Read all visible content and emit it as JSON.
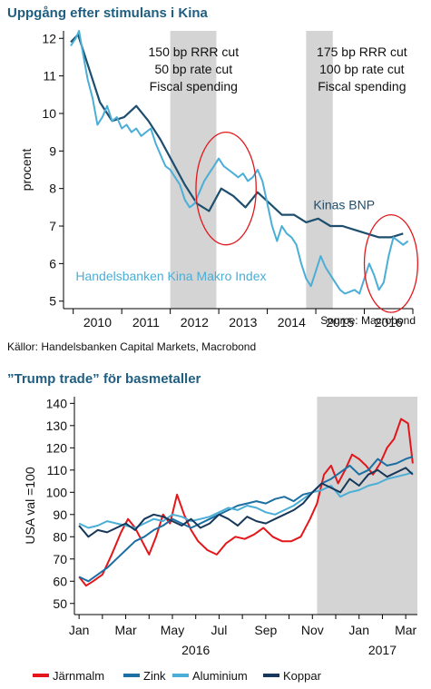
{
  "chart_data": [
    {
      "type": "line",
      "title": "Uppgång efter stimulans i Kina",
      "ylabel": "procent",
      "source": "Source: Macrobond",
      "ylim": [
        4.8,
        12.2
      ],
      "yticks": [
        5,
        6,
        7,
        8,
        9,
        10,
        11,
        12
      ],
      "xlim": [
        2009.8,
        2017.0
      ],
      "xticks": [
        "2010",
        "2011",
        "2012",
        "2013",
        "2014",
        "2015",
        "2016"
      ],
      "shaded_periods": [
        [
          2012.0,
          2012.95
        ],
        [
          2014.8,
          2015.35
        ]
      ],
      "annotations": [
        {
          "lines": [
            "150 bp RRR cut",
            "50 bp rate cut",
            "Fiscal spending"
          ]
        },
        {
          "lines": [
            "175 bp RRR cut",
            "100 bp rate cut",
            "Fiscal spending"
          ]
        }
      ],
      "circles": [
        {
          "cx": 2013.15,
          "cy": 8.0,
          "rx": 0.62,
          "ry": 1.5
        },
        {
          "cx": 2016.55,
          "cy": 6.0,
          "rx": 0.55,
          "ry": 1.3
        }
      ],
      "series": [
        {
          "name": "Kinas BNP",
          "color": "#1d4e6e",
          "x": [
            2009.95,
            2010.1,
            2010.3,
            2010.55,
            2010.8,
            2011.05,
            2011.3,
            2011.55,
            2011.8,
            2012.05,
            2012.3,
            2012.55,
            2012.8,
            2013.05,
            2013.3,
            2013.55,
            2013.8,
            2014.05,
            2014.3,
            2014.55,
            2014.8,
            2015.05,
            2015.3,
            2015.55,
            2015.8,
            2016.05,
            2016.3,
            2016.55,
            2016.8
          ],
          "values": [
            11.9,
            12.1,
            11.3,
            10.3,
            9.8,
            9.9,
            10.2,
            9.8,
            9.3,
            8.7,
            8.1,
            7.6,
            7.4,
            8.0,
            7.8,
            7.5,
            7.9,
            7.6,
            7.3,
            7.3,
            7.1,
            7.2,
            7.0,
            7.0,
            6.9,
            6.8,
            6.7,
            6.7,
            6.8
          ]
        },
        {
          "name": "Handelsbanken Kina Makro Index",
          "color": "#4baed6",
          "x": [
            2009.95,
            2010.05,
            2010.12,
            2010.2,
            2010.3,
            2010.4,
            2010.5,
            2010.6,
            2010.7,
            2010.8,
            2010.9,
            2011.0,
            2011.1,
            2011.2,
            2011.3,
            2011.4,
            2011.5,
            2011.6,
            2011.7,
            2011.8,
            2011.9,
            2012.0,
            2012.1,
            2012.2,
            2012.3,
            2012.4,
            2012.5,
            2012.6,
            2012.7,
            2012.8,
            2012.9,
            2013.0,
            2013.1,
            2013.2,
            2013.3,
            2013.4,
            2013.5,
            2013.6,
            2013.7,
            2013.8,
            2013.9,
            2014.0,
            2014.1,
            2014.2,
            2014.3,
            2014.4,
            2014.5,
            2014.6,
            2014.7,
            2014.8,
            2014.9,
            2015.0,
            2015.1,
            2015.2,
            2015.3,
            2015.4,
            2015.5,
            2015.6,
            2015.7,
            2015.8,
            2015.9,
            2016.0,
            2016.1,
            2016.2,
            2016.3,
            2016.4,
            2016.5,
            2016.6,
            2016.7,
            2016.8,
            2016.9
          ],
          "values": [
            11.8,
            12.0,
            12.2,
            11.6,
            10.9,
            10.4,
            9.7,
            9.9,
            10.2,
            9.8,
            9.9,
            9.6,
            9.7,
            9.5,
            9.6,
            9.4,
            9.5,
            9.6,
            9.2,
            8.9,
            8.6,
            8.5,
            8.3,
            8.1,
            7.7,
            7.5,
            7.6,
            7.9,
            8.2,
            8.4,
            8.6,
            8.8,
            8.6,
            8.5,
            8.4,
            8.3,
            8.4,
            8.2,
            8.3,
            8.5,
            8.2,
            7.6,
            7.0,
            6.6,
            7.0,
            6.8,
            6.7,
            6.5,
            6.0,
            5.6,
            5.4,
            5.8,
            6.2,
            5.9,
            5.7,
            5.5,
            5.3,
            5.2,
            5.25,
            5.3,
            5.2,
            5.6,
            6.0,
            5.7,
            5.3,
            5.5,
            6.2,
            6.7,
            6.6,
            6.5,
            6.6
          ]
        }
      ],
      "labels": {
        "gdp": "Kinas BNP",
        "index": "Handelsbanken Kina Makro Index"
      }
    },
    {
      "type": "line",
      "title": "”Trump trade” för basmetaller",
      "ylabel": "USA val =100",
      "ylim": [
        45,
        143
      ],
      "yticks": [
        50,
        60,
        70,
        80,
        90,
        100,
        110,
        120,
        130,
        140
      ],
      "xticks": [
        "Jan",
        "Mar",
        "May",
        "Jul",
        "Sep",
        "Nov",
        "Jan",
        "Mar"
      ],
      "year_labels": [
        "2016",
        "2017"
      ],
      "x_unit": "months since Jan 2016",
      "xlim": [
        -0.2,
        14.5
      ],
      "shaded_periods": [
        [
          10.2,
          14.5
        ]
      ],
      "series": [
        {
          "name": "Järnmalm",
          "color": "#e3171b",
          "x": [
            0,
            0.3,
            0.6,
            1.0,
            1.4,
            1.8,
            2.1,
            2.4,
            2.7,
            3.0,
            3.3,
            3.6,
            3.9,
            4.2,
            4.5,
            4.8,
            5.1,
            5.5,
            5.9,
            6.3,
            6.7,
            7.1,
            7.5,
            7.9,
            8.3,
            8.7,
            9.1,
            9.5,
            9.9,
            10.2,
            10.5,
            10.8,
            11.1,
            11.4,
            11.7,
            12.0,
            12.3,
            12.6,
            12.9,
            13.2,
            13.5,
            13.8,
            14.1,
            14.3
          ],
          "values": [
            62,
            58,
            60,
            63,
            72,
            82,
            88,
            84,
            78,
            72,
            80,
            90,
            86,
            99,
            90,
            83,
            78,
            74,
            72,
            77,
            80,
            79,
            81,
            84,
            80,
            78,
            78,
            80,
            88,
            95,
            108,
            112,
            104,
            110,
            117,
            115,
            112,
            108,
            113,
            120,
            124,
            133,
            131,
            113
          ]
        },
        {
          "name": "Zink",
          "color": "#1b6fa3",
          "x": [
            0,
            0.4,
            0.8,
            1.2,
            1.6,
            2.0,
            2.4,
            2.8,
            3.2,
            3.6,
            4.0,
            4.4,
            4.8,
            5.2,
            5.6,
            6.0,
            6.4,
            6.8,
            7.2,
            7.6,
            8.0,
            8.4,
            8.8,
            9.2,
            9.6,
            10.0,
            10.4,
            10.8,
            11.2,
            11.6,
            12.0,
            12.4,
            12.8,
            13.2,
            13.6,
            14.0,
            14.3
          ],
          "values": [
            62,
            60,
            63,
            66,
            70,
            74,
            78,
            80,
            83,
            85,
            88,
            86,
            84,
            86,
            88,
            90,
            92,
            94,
            95,
            96,
            95,
            97,
            98,
            96,
            99,
            100,
            104,
            106,
            109,
            112,
            108,
            110,
            115,
            112,
            113,
            115,
            116
          ]
        },
        {
          "name": "Aluminium",
          "color": "#4baed6",
          "x": [
            0,
            0.4,
            0.8,
            1.2,
            1.6,
            2.0,
            2.4,
            2.8,
            3.2,
            3.6,
            4.0,
            4.4,
            4.8,
            5.2,
            5.6,
            6.0,
            6.4,
            6.8,
            7.2,
            7.6,
            8.0,
            8.4,
            8.8,
            9.2,
            9.6,
            10.0,
            10.4,
            10.8,
            11.2,
            11.6,
            12.0,
            12.4,
            12.8,
            13.2,
            13.6,
            14.0,
            14.3
          ],
          "values": [
            86,
            84,
            85,
            87,
            86,
            85,
            84,
            86,
            88,
            87,
            90,
            89,
            87,
            88,
            89,
            91,
            93,
            92,
            94,
            93,
            91,
            90,
            92,
            94,
            97,
            100,
            101,
            103,
            98,
            100,
            101,
            103,
            104,
            106,
            107,
            108,
            109
          ]
        },
        {
          "name": "Koppar",
          "color": "#17385a",
          "x": [
            0,
            0.4,
            0.8,
            1.2,
            1.6,
            2.0,
            2.4,
            2.8,
            3.2,
            3.6,
            4.0,
            4.4,
            4.8,
            5.2,
            5.6,
            6.0,
            6.4,
            6.8,
            7.2,
            7.6,
            8.0,
            8.4,
            8.8,
            9.2,
            9.6,
            10.0,
            10.4,
            10.8,
            11.2,
            11.6,
            12.0,
            12.4,
            12.8,
            13.2,
            13.6,
            14.0,
            14.3
          ],
          "values": [
            85,
            80,
            83,
            82,
            84,
            86,
            83,
            88,
            90,
            89,
            87,
            85,
            88,
            84,
            86,
            90,
            88,
            85,
            89,
            87,
            86,
            88,
            90,
            92,
            95,
            100,
            104,
            102,
            100,
            106,
            103,
            108,
            110,
            107,
            109,
            111,
            108
          ]
        }
      ]
    }
  ],
  "footer": {
    "sources": "Källor: Handelsbanken Capital Markets, Macrobond"
  }
}
